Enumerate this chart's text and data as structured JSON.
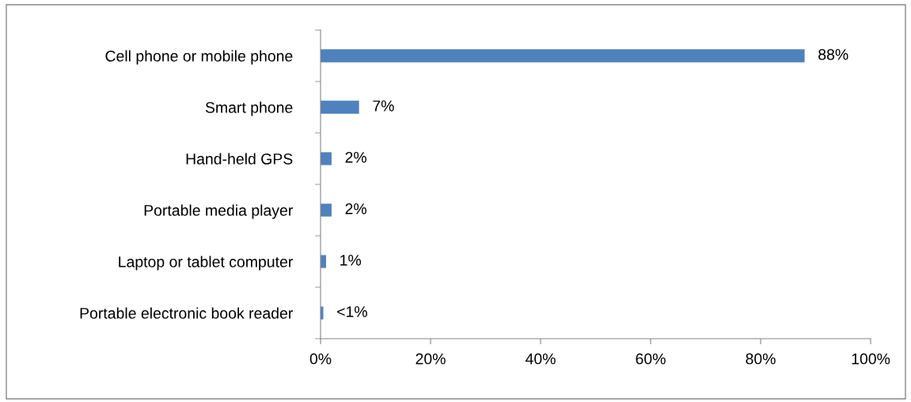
{
  "chart_data": {
    "type": "bar",
    "orientation": "horizontal",
    "categories": [
      "Cell phone or mobile phone",
      "Smart phone",
      "Hand-held GPS",
      "Portable media player",
      "Laptop or tablet computer",
      "Portable electronic book reader"
    ],
    "values": [
      88,
      7,
      2,
      2,
      1,
      0.5
    ],
    "value_labels": [
      "88%",
      "7%",
      "2%",
      "2%",
      "1%",
      "<1%"
    ],
    "color": "#4f81bd",
    "xlim": [
      0,
      100
    ],
    "xticks": [
      {
        "value": 0,
        "label": "0%"
      },
      {
        "value": 20,
        "label": "20%"
      },
      {
        "value": 40,
        "label": "40%"
      },
      {
        "value": 60,
        "label": "60%"
      },
      {
        "value": 80,
        "label": "80%"
      },
      {
        "value": 100,
        "label": "100%"
      }
    ],
    "grid": false,
    "legend": false
  }
}
